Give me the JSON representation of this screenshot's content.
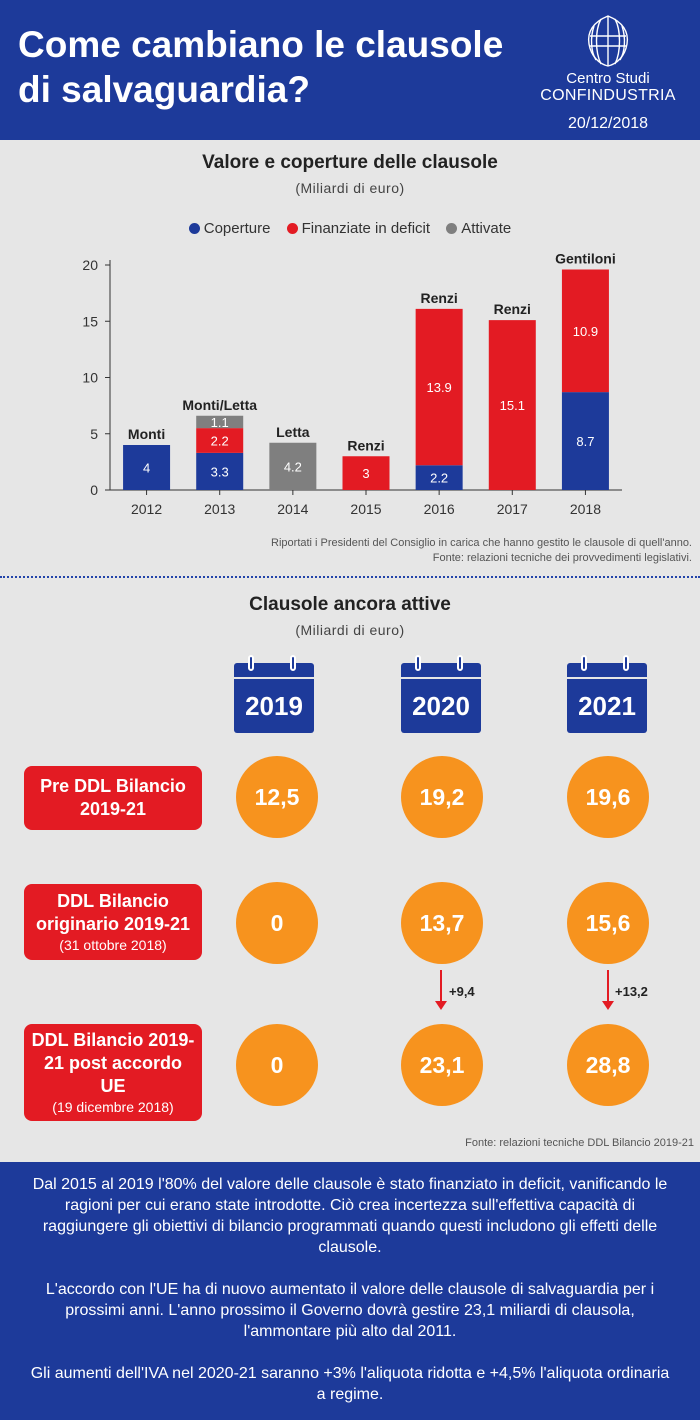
{
  "header": {
    "title": "Come cambiano le clausole di salvaguardia?",
    "logo_line1": "Centro Studi",
    "logo_line2": "CONFINDUSTRIA",
    "date": "20/12/2018"
  },
  "colors": {
    "blue": "#1d3a9a",
    "red": "#e31b23",
    "grey": "#7f7f7f",
    "orange": "#f7931e"
  },
  "section1": {
    "title": "Valore e coperture delle clausole",
    "subtitle": "(Miliardi di euro)"
  },
  "chart_data": {
    "type": "bar",
    "stacked": true,
    "title": "Valore e coperture delle clausole",
    "subtitle": "(Miliardi di euro)",
    "categories": [
      "2012",
      "2013",
      "2014",
      "2015",
      "2016",
      "2017",
      "2018"
    ],
    "series": [
      {
        "name": "Coperture",
        "color": "#1d3a9a",
        "values": [
          4,
          3.3,
          0,
          0,
          2.2,
          0,
          8.7
        ],
        "labels": [
          "4",
          "3.3",
          "",
          "",
          "2.2",
          "",
          "8.7"
        ]
      },
      {
        "name": "Finanziate in deficit",
        "color": "#e31b23",
        "values": [
          0,
          2.2,
          0,
          3,
          13.9,
          15.1,
          10.9
        ],
        "labels": [
          "",
          "2.2",
          "",
          "3",
          "13.9",
          "15.1",
          "10.9"
        ]
      },
      {
        "name": "Attivate",
        "color": "#7f7f7f",
        "values": [
          0,
          1.1,
          4.2,
          0,
          0,
          0,
          0
        ],
        "labels": [
          "",
          "1.1",
          "4.2",
          "",
          "",
          "",
          ""
        ]
      }
    ],
    "bar_annotations": [
      "Monti",
      "Monti/Letta",
      "Letta",
      "Renzi",
      "Renzi",
      "Renzi",
      "Gentiloni"
    ],
    "ylim": [
      0,
      20
    ],
    "yticks": [
      0,
      5,
      10,
      15,
      20
    ],
    "legend_position": "top",
    "grid": false
  },
  "notes": {
    "line1": "Riportati i Presidenti del Consiglio in carica che hanno gestito le clausole di quell'anno.",
    "line2": "Fonte: relazioni tecniche dei provvedimenti legislativi."
  },
  "section2": {
    "title": "Clausole ancora attive",
    "subtitle": "(Miliardi di euro)",
    "years": [
      "2019",
      "2020",
      "2021"
    ],
    "rows": [
      {
        "label": "Pre DDL Bilancio 2019-21",
        "note": "",
        "values": [
          "12,5",
          "19,2",
          "19,6"
        ]
      },
      {
        "label": "DDL Bilancio originario 2019-21",
        "note": "(31 ottobre 2018)",
        "values": [
          "0",
          "13,7",
          "15,6"
        ]
      },
      {
        "label": "DDL Bilancio 2019-21 post accordo UE",
        "note": "(19 dicembre 2018)",
        "values": [
          "0",
          "23,1",
          "28,8"
        ]
      }
    ],
    "deltas": [
      "+9,4",
      "+13,2"
    ],
    "source": "Fonte: relazioni tecniche DDL Bilancio 2019-21"
  },
  "footer": {
    "p1": "Dal 2015 al 2019 l'80% del valore delle clausole è stato finanziato in deficit, vanificando le ragioni per cui erano state introdotte. Ciò crea incertezza sull'effettiva capacità di raggiungere gli obiettivi di bilancio programmati quando questi includono gli effetti delle clausole.",
    "p2": "L'accordo con l'UE ha di nuovo aumentato il valore delle clausole di salvaguardia per i prossimi anni. L'anno prossimo il Governo dovrà gestire 23,1 miliardi di clausola, l'ammontare più alto dal 2011.",
    "p3": "Gli aumenti dell'IVA nel 2020-21 saranno +3% l'aliquota ridotta e +4,5% l'aliquota ordinaria a regime."
  }
}
